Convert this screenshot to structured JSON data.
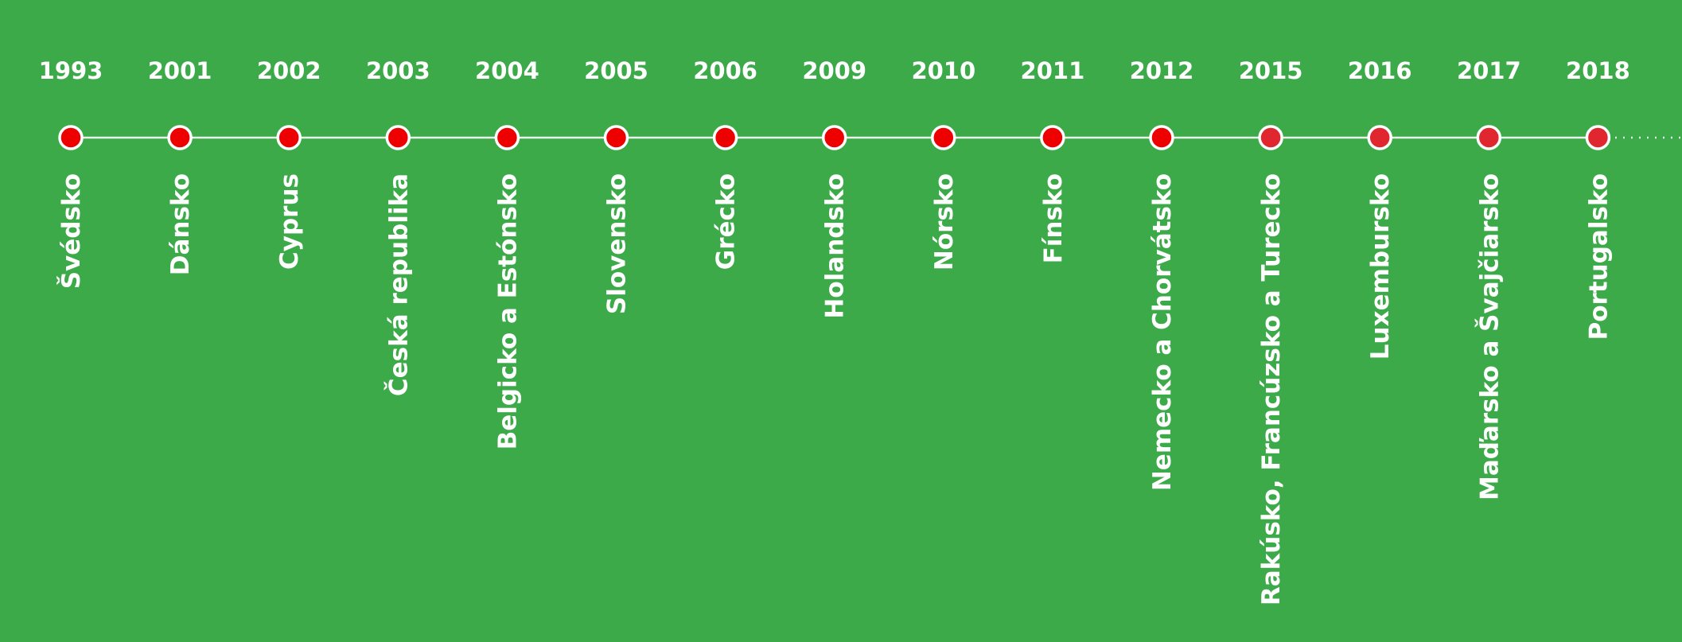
{
  "timeline": {
    "events": [
      {
        "year": "1993",
        "label": "Švédsko"
      },
      {
        "year": "2001",
        "label": "Dánsko"
      },
      {
        "year": "2002",
        "label": "Cyprus"
      },
      {
        "year": "2003",
        "label": "Česká republika"
      },
      {
        "year": "2004",
        "label": "Belgicko a Estónsko"
      },
      {
        "year": "2005",
        "label": "Slovensko"
      },
      {
        "year": "2006",
        "label": "Grécko"
      },
      {
        "year": "2009",
        "label": "Holandsko"
      },
      {
        "year": "2010",
        "label": "Nórsko"
      },
      {
        "year": "2011",
        "label": "Fínsko"
      },
      {
        "year": "2012",
        "label": "Nemecko a Chorvátsko"
      },
      {
        "year": "2015",
        "label": "Rakúsko, Francúzsko a Turecko"
      },
      {
        "year": "2016",
        "label": "Luxembursko"
      },
      {
        "year": "2017",
        "label": "Maďarsko a Švajčiarsko"
      },
      {
        "year": "2018",
        "label": "Portugalsko"
      }
    ]
  }
}
